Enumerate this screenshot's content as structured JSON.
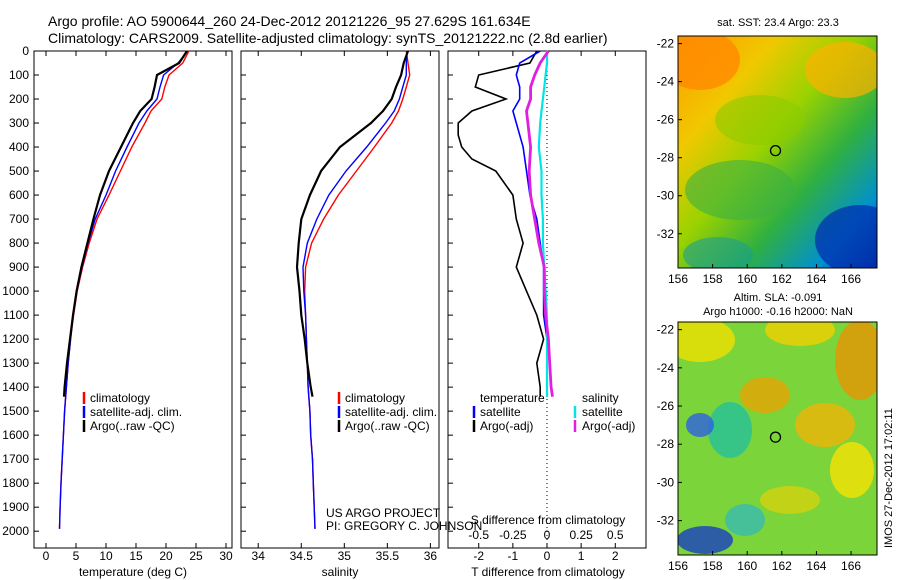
{
  "header": {
    "line1": "Argo profile: AO 5900644_260 24-Dec-2012 20121226_95 27.629S 161.634E",
    "line2": "Climatology: CARS2009. Satellite-adjusted climatology: synTS_20121222.nc (2.8d earlier)"
  },
  "credits": {
    "project": "US ARGO PROJECT",
    "pi": "PI: GREGORY C. JOHNSON",
    "imos": "IMOS 27-Dec-2012 17:02:11"
  },
  "colors": {
    "climatology": "#ff0000",
    "satellite": "#0000ff",
    "argo": "#000000",
    "cyan": "#00e5e5",
    "magenta": "#e020e0"
  },
  "chart_data": [
    {
      "type": "line",
      "panel": "temperature",
      "xlabel": "temperature (deg C)",
      "ylabel": "",
      "xlim": [
        -2,
        31
      ],
      "ylim": [
        2070,
        0
      ],
      "xticks": [
        "0",
        "5",
        "10",
        "15",
        "20",
        "25",
        "30"
      ],
      "yticks": [
        "0",
        "100",
        "200",
        "300",
        "400",
        "500",
        "600",
        "700",
        "800",
        "900",
        "1000",
        "1100",
        "1200",
        "1300",
        "1400",
        "1500",
        "1600",
        "1700",
        "1800",
        "1900",
        "2000"
      ],
      "legend": [
        "climatology",
        "satellite-adj. clim.",
        "Argo(..raw -QC)"
      ],
      "series": [
        {
          "name": "climatology",
          "depth": [
            0,
            50,
            100,
            150,
            200,
            250,
            300,
            400,
            500,
            600,
            700,
            800,
            900,
            1000,
            1100,
            1200,
            1300,
            1400,
            1500,
            1600,
            1700,
            1800,
            1900,
            1990
          ],
          "values": [
            23.8,
            22.8,
            20.5,
            19.8,
            19.3,
            17.5,
            16.5,
            14.3,
            12.4,
            10.5,
            8.5,
            7.2,
            6.1,
            5.2,
            4.6,
            4.1,
            3.7,
            3.4,
            3.1,
            2.9,
            2.7,
            2.5,
            2.35,
            2.25
          ]
        },
        {
          "name": "satellite-adj. clim.",
          "depth": [
            0,
            50,
            100,
            150,
            200,
            250,
            300,
            400,
            500,
            600,
            700,
            800,
            900,
            1000,
            1100,
            1200,
            1300,
            1400,
            1500,
            1600,
            1700,
            1800,
            1900,
            1990
          ],
          "values": [
            23.6,
            22.0,
            19.6,
            19.0,
            18.5,
            16.8,
            15.5,
            13.5,
            11.6,
            10.0,
            8.2,
            7.0,
            6.0,
            5.1,
            4.5,
            4.1,
            3.7,
            3.4,
            3.1,
            2.9,
            2.7,
            2.5,
            2.35,
            2.25
          ]
        },
        {
          "name": "Argo(..raw -QC)",
          "depth": [
            0,
            50,
            100,
            150,
            200,
            250,
            300,
            400,
            500,
            600,
            700,
            800,
            900,
            1000,
            1100,
            1200,
            1300,
            1400,
            1440
          ],
          "values": [
            23.5,
            22.2,
            18.5,
            18.1,
            17.6,
            15.7,
            14.5,
            12.5,
            10.5,
            9.0,
            7.9,
            6.9,
            5.9,
            5.1,
            4.5,
            4.0,
            3.5,
            3.1,
            3.0
          ]
        }
      ]
    },
    {
      "type": "line",
      "panel": "salinity",
      "xlabel": "salinity",
      "xlim": [
        33.8,
        36.1
      ],
      "ylim": [
        2070,
        0
      ],
      "xticks": [
        "34",
        "34.5",
        "35",
        "35.5",
        "36"
      ],
      "legend": [
        "climatology",
        "satellite-adj. clim.",
        "Argo(..raw -QC)"
      ],
      "series": [
        {
          "name": "climatology",
          "depth": [
            0,
            50,
            100,
            150,
            200,
            250,
            300,
            400,
            500,
            600,
            700,
            800,
            900,
            1000,
            1100,
            1200,
            1300,
            1400,
            1500,
            1600,
            1700,
            1800,
            1900,
            1990
          ],
          "values": [
            35.72,
            35.74,
            35.76,
            35.72,
            35.68,
            35.63,
            35.55,
            35.35,
            35.14,
            34.93,
            34.76,
            34.62,
            34.55,
            34.54,
            34.55,
            34.56,
            34.57,
            34.58,
            34.6,
            34.61,
            34.63,
            34.64,
            34.65,
            34.66
          ]
        },
        {
          "name": "satellite-adj. clim.",
          "depth": [
            0,
            50,
            100,
            150,
            200,
            250,
            300,
            400,
            500,
            600,
            700,
            800,
            900,
            1000,
            1100,
            1200,
            1300,
            1400,
            1500,
            1600,
            1700,
            1800,
            1900,
            1990
          ],
          "values": [
            35.73,
            35.72,
            35.72,
            35.68,
            35.64,
            35.58,
            35.48,
            35.26,
            35.02,
            34.82,
            34.68,
            34.57,
            34.52,
            34.53,
            34.55,
            34.56,
            34.57,
            34.58,
            34.6,
            34.61,
            34.63,
            34.64,
            34.65,
            34.66
          ]
        },
        {
          "name": "Argo(..raw -QC)",
          "depth": [
            0,
            50,
            100,
            150,
            200,
            250,
            300,
            400,
            500,
            600,
            700,
            800,
            900,
            1000,
            1100,
            1200,
            1300,
            1400,
            1440
          ],
          "values": [
            35.74,
            35.69,
            35.66,
            35.6,
            35.55,
            35.45,
            35.31,
            34.95,
            34.73,
            34.6,
            34.5,
            34.47,
            34.45,
            34.48,
            34.5,
            34.54,
            34.57,
            34.61,
            34.63
          ]
        }
      ]
    },
    {
      "type": "line",
      "panel": "difference",
      "xlabel": "T difference from climatology",
      "xlabel2": "S difference from climatology",
      "xlim_T": [
        -2.9,
        2.9
      ],
      "xlim_S": [
        -0.725,
        0.725
      ],
      "ylim": [
        2070,
        0
      ],
      "xticks_T": [
        "-2",
        "-1",
        "0",
        "1",
        "2"
      ],
      "xticks_S": [
        "-0.5",
        "-0.25",
        "0",
        "0.25",
        "0.5"
      ],
      "legend_T_title": "temperature",
      "legend_S_title": "salinity",
      "legend": [
        "satellite",
        "Argo(-adj)",
        "satellite",
        "Argo(-adj)"
      ],
      "series": [
        {
          "name": "T satellite",
          "depth": [
            0,
            50,
            100,
            150,
            200,
            250,
            300,
            400,
            500,
            600,
            700,
            800,
            900,
            1000,
            1100,
            1200,
            1300,
            1400,
            1440
          ],
          "values": [
            -0.2,
            -0.8,
            -0.9,
            -0.8,
            -0.8,
            -1.0,
            -0.9,
            -0.7,
            -0.6,
            -0.5,
            -0.3,
            -0.2,
            -0.1,
            -0.1,
            -0.1,
            0,
            0,
            0,
            0
          ]
        },
        {
          "name": "T Argo(-adj)",
          "depth": [
            0,
            50,
            100,
            150,
            200,
            250,
            300,
            350,
            400,
            450,
            500,
            600,
            700,
            800,
            900,
            1000,
            1100,
            1200,
            1300,
            1400,
            1440
          ],
          "values": [
            -0.3,
            -0.5,
            -2.0,
            -2.1,
            -1.2,
            -2.2,
            -2.6,
            -2.6,
            -2.5,
            -2.2,
            -1.5,
            -1.0,
            -0.9,
            -0.7,
            -0.9,
            -0.6,
            -0.3,
            -0.1,
            -0.3,
            -0.2,
            -0.2
          ]
        },
        {
          "name": "S satellite",
          "depth": [
            0,
            50,
            100,
            150,
            200,
            250,
            300,
            400,
            500,
            600,
            700,
            800,
            900,
            1000,
            1100,
            1200,
            1300,
            1400,
            1440
          ],
          "values": [
            0,
            0,
            -0.01,
            -0.02,
            -0.03,
            -0.04,
            -0.05,
            -0.06,
            -0.04,
            -0.04,
            -0.03,
            -0.03,
            -0.02,
            -0.01,
            0,
            0,
            0,
            0,
            0
          ]
        },
        {
          "name": "S Argo(-adj)",
          "depth": [
            0,
            50,
            100,
            150,
            200,
            250,
            300,
            400,
            500,
            600,
            700,
            800,
            900,
            1000,
            1100,
            1200,
            1300,
            1400,
            1440
          ],
          "values": [
            0.01,
            -0.05,
            -0.09,
            -0.12,
            -0.12,
            -0.15,
            -0.14,
            -0.12,
            -0.13,
            -0.12,
            -0.09,
            -0.06,
            -0.02,
            -0.02,
            -0.01,
            0.01,
            0.02,
            0.03,
            0.04
          ]
        }
      ]
    },
    {
      "type": "heatmap",
      "panel": "sst-map",
      "title": "sat. SST: 23.4 Argo: 23.3",
      "xticks": [
        "156",
        "158",
        "160",
        "162",
        "164",
        "166"
      ],
      "yticks": [
        "-22",
        "-24",
        "-26",
        "-28",
        "-30",
        "-32"
      ],
      "xlim": [
        156,
        167.5
      ],
      "ylim": [
        -33.8,
        -21.6
      ],
      "marker": {
        "lon": 161.634,
        "lat": -27.629
      }
    },
    {
      "type": "heatmap",
      "panel": "sla-map",
      "title": "Altim. SLA: -0.091",
      "subtitle": "Argo h1000: -0.16 h2000: NaN",
      "xticks": [
        "156",
        "158",
        "160",
        "162",
        "164",
        "166"
      ],
      "yticks": [
        "-22",
        "-24",
        "-26",
        "-28",
        "-30",
        "-32"
      ],
      "xlim": [
        156,
        167.5
      ],
      "ylim": [
        -33.8,
        -21.6
      ],
      "marker": {
        "lon": 161.634,
        "lat": -27.629
      }
    }
  ]
}
